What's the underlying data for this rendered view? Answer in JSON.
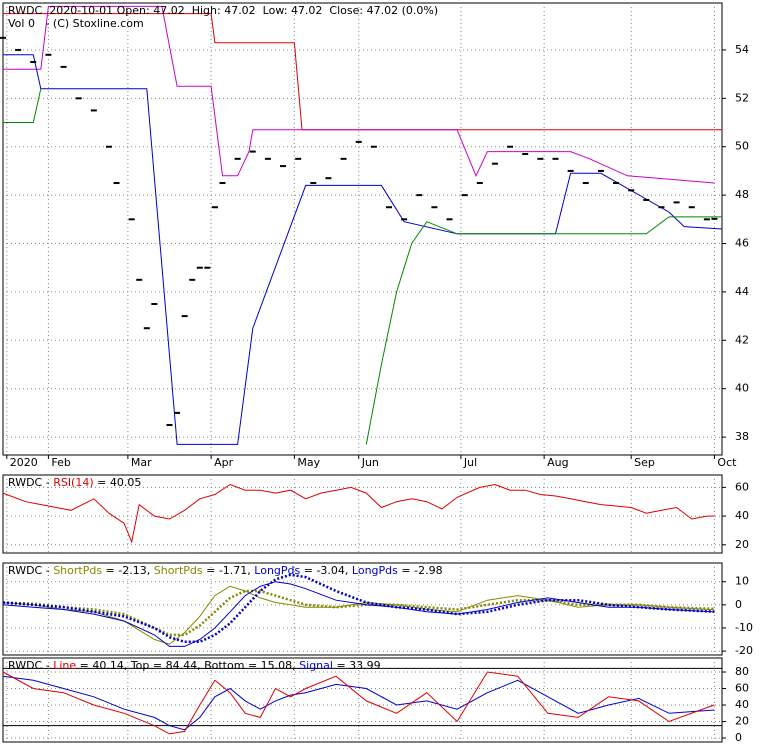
{
  "chart_data": [
    {
      "type": "price",
      "header": [
        [
          {
            "text": "RWDC  2020-10-01 Open: 47.02  High: 47.02  Low: 47.02  Close: 47.02 (0.0%)",
            "color": "#000000"
          }
        ],
        [
          {
            "text": "Vol 0   - (C) Stoxline.com",
            "color": "#000000"
          }
        ]
      ],
      "xlim": [
        0,
        190
      ],
      "xticks": [
        {
          "value": 1,
          "label": "2020"
        },
        {
          "value": 12,
          "label": "Feb"
        },
        {
          "value": 33,
          "label": "Mar"
        },
        {
          "value": 55,
          "label": "Apr"
        },
        {
          "value": 77,
          "label": "May"
        },
        {
          "value": 94,
          "label": "Jun"
        },
        {
          "value": 121,
          "label": "Jul"
        },
        {
          "value": 143,
          "label": "Aug"
        },
        {
          "value": 166,
          "label": "Sep"
        },
        {
          "value": 188,
          "label": "Oct"
        }
      ],
      "ylim": [
        37.26,
        55.94
      ],
      "yticks": [
        38,
        40,
        42,
        44,
        46,
        48,
        50,
        52,
        54
      ],
      "grid": true,
      "series": [
        {
          "style": "line",
          "color": "#dd0000",
          "x": [
            0,
            55,
            56,
            77,
            79,
            190
          ],
          "values": [
            55.5,
            55.5,
            54.3,
            54.3,
            50.7,
            50.7
          ]
        },
        {
          "style": "line",
          "color": "#cc00cc",
          "x": [
            0,
            10,
            12,
            42,
            46,
            55,
            58,
            62,
            65,
            66,
            120,
            125,
            128,
            150,
            155,
            165,
            188
          ],
          "values": [
            53.2,
            53.2,
            55.8,
            55.8,
            52.5,
            52.5,
            48.8,
            48.8,
            49.8,
            50.7,
            50.7,
            48.8,
            49.8,
            49.8,
            49.5,
            48.8,
            48.5
          ]
        },
        {
          "style": "line",
          "color": "#0000cc",
          "x": [
            0,
            8,
            10,
            38,
            46,
            62,
            66,
            80,
            100,
            106,
            120,
            146,
            150,
            158,
            176,
            180,
            190
          ],
          "values": [
            53.8,
            53.8,
            52.4,
            52.4,
            37.7,
            37.7,
            42.5,
            48.4,
            48.4,
            46.9,
            46.4,
            46.4,
            48.9,
            48.9,
            47.3,
            46.7,
            46.6
          ]
        },
        {
          "style": "line",
          "color": "#008800",
          "x": [
            0,
            8,
            10,
            46,
            96,
            100,
            104,
            108,
            112,
            120,
            170,
            176,
            190
          ],
          "values": [
            51.0,
            51.0,
            52.4,
            null,
            37.7,
            41,
            44,
            46,
            46.9,
            46.4,
            46.4,
            47.1,
            47.1
          ]
        },
        {
          "style": "dash",
          "color": "#000000",
          "x": [
            0,
            4,
            8,
            12,
            16,
            20,
            24,
            28,
            30,
            34,
            36,
            38,
            40,
            44,
            46,
            48,
            50,
            52,
            54,
            56,
            58,
            62,
            66,
            70,
            74,
            78,
            82,
            86,
            90,
            94,
            98,
            102,
            106,
            110,
            114,
            118,
            122,
            126,
            130,
            134,
            138,
            142,
            146,
            150,
            154,
            158,
            162,
            166,
            170,
            174,
            178,
            182,
            186,
            188
          ],
          "values": [
            54.5,
            54,
            53.5,
            53.8,
            53.3,
            52,
            51.5,
            50,
            48.5,
            47,
            44.5,
            42.5,
            43.5,
            38.5,
            39,
            43,
            44.5,
            45,
            45,
            47.5,
            48.5,
            49.5,
            49.8,
            49.5,
            49.2,
            49.5,
            48.5,
            48.7,
            49.5,
            50.2,
            50,
            47.5,
            47,
            48,
            47.5,
            47,
            48,
            48.5,
            49.3,
            50,
            49.7,
            49.5,
            49.5,
            49,
            48.5,
            49,
            48.5,
            48.2,
            47.8,
            47.5,
            47.7,
            47.5,
            47,
            47.02
          ]
        }
      ]
    },
    {
      "type": "line",
      "header": [
        [
          {
            "text": "RWDC - ",
            "color": "#000000"
          },
          {
            "text": "RSI(14)",
            "color": "#dd0000"
          },
          {
            "text": " = 40.05",
            "color": "#000000"
          }
        ]
      ],
      "xlim": [
        0,
        190
      ],
      "ylim": [
        14.3,
        68.6
      ],
      "yticks": [
        20,
        40,
        60
      ],
      "grid": true,
      "series": [
        {
          "style": "line",
          "color": "#dd0000",
          "x": [
            0,
            6,
            12,
            18,
            24,
            28,
            32,
            34,
            36,
            40,
            44,
            48,
            52,
            56,
            60,
            64,
            68,
            72,
            76,
            80,
            84,
            88,
            92,
            96,
            100,
            104,
            108,
            112,
            116,
            120,
            126,
            130,
            134,
            138,
            142,
            146,
            150,
            154,
            158,
            162,
            166,
            170,
            174,
            178,
            182,
            186,
            188
          ],
          "values": [
            56,
            50,
            47,
            44,
            52,
            42,
            35,
            22,
            48,
            40,
            38,
            44,
            52,
            55,
            62,
            58,
            58,
            56,
            58,
            52,
            56,
            58,
            60,
            56,
            46,
            50,
            52,
            50,
            45,
            53,
            60,
            62,
            58,
            58,
            55,
            54,
            52,
            50,
            48,
            47,
            46,
            42,
            44,
            46,
            38,
            40,
            40.05
          ]
        }
      ]
    },
    {
      "type": "line",
      "header": [
        [
          {
            "text": "RWDC - ",
            "color": "#000000"
          },
          {
            "text": "ShortPds",
            "color": "#888800"
          },
          {
            "text": " = -2.13, ",
            "color": "#000000"
          },
          {
            "text": "ShortPds",
            "color": "#888800"
          },
          {
            "text": " = -1.71, ",
            "color": "#000000"
          },
          {
            "text": "LongPds",
            "color": "#0000cc"
          },
          {
            "text": " = -3.04, ",
            "color": "#000000"
          },
          {
            "text": "LongPds",
            "color": "#0000cc"
          },
          {
            "text": " = -2.98",
            "color": "#000000"
          }
        ]
      ],
      "xlim": [
        0,
        190
      ],
      "ylim": [
        -21.7,
        18.1
      ],
      "yticks": [
        -20,
        -10,
        0,
        10
      ],
      "grid": true,
      "series": [
        {
          "style": "line",
          "color": "#888800",
          "x": [
            0,
            8,
            16,
            24,
            32,
            40,
            44,
            48,
            52,
            56,
            60,
            64,
            68,
            72,
            76,
            80,
            88,
            96,
            104,
            112,
            120,
            128,
            136,
            144,
            152,
            160,
            168,
            176,
            188
          ],
          "values": [
            1,
            0,
            -2,
            -3,
            -7,
            -15,
            -17,
            -12,
            -5,
            4,
            8,
            6,
            3,
            1,
            0,
            -1,
            -1,
            1,
            0,
            -2,
            -3,
            2,
            4,
            2,
            -1,
            0,
            0,
            -1,
            -2.13
          ]
        },
        {
          "style": "dots",
          "color": "#888800",
          "x": [
            0,
            8,
            16,
            24,
            32,
            40,
            44,
            48,
            52,
            56,
            60,
            64,
            68,
            72,
            76,
            80,
            88,
            96,
            104,
            112,
            120,
            128,
            136,
            144,
            152,
            160,
            168,
            176,
            188
          ],
          "values": [
            1,
            0.5,
            -1,
            -2,
            -4,
            -10,
            -13,
            -13,
            -9,
            -3,
            3,
            6,
            6,
            4,
            2,
            0,
            -1,
            0,
            0,
            -1,
            -2,
            0,
            2,
            2,
            0,
            0,
            0,
            -1,
            -1.71
          ]
        },
        {
          "style": "line",
          "color": "#0000cc",
          "x": [
            0,
            8,
            16,
            24,
            32,
            40,
            44,
            48,
            52,
            56,
            60,
            64,
            68,
            72,
            76,
            80,
            88,
            96,
            104,
            112,
            120,
            128,
            136,
            144,
            152,
            160,
            168,
            176,
            188
          ],
          "values": [
            0,
            -1,
            -2,
            -4,
            -7,
            -13,
            -18,
            -18,
            -15,
            -10,
            -3,
            4,
            8,
            10,
            9,
            7,
            2,
            0,
            -1,
            -3,
            -4,
            -2,
            1,
            3,
            1,
            -1,
            -1,
            -2,
            -3.04
          ]
        },
        {
          "style": "dots",
          "color": "#0000cc",
          "x": [
            0,
            8,
            16,
            24,
            32,
            40,
            44,
            48,
            52,
            56,
            60,
            64,
            68,
            72,
            76,
            80,
            88,
            96,
            104,
            112,
            120,
            128,
            136,
            144,
            152,
            160,
            168,
            176,
            188
          ],
          "values": [
            1,
            0,
            -1,
            -3,
            -5,
            -10,
            -14,
            -16,
            -16,
            -13,
            -8,
            -1,
            6,
            11,
            13,
            12,
            6,
            1,
            -1,
            -2,
            -4,
            -3,
            0,
            2,
            2,
            0,
            -1,
            -2,
            -2.98
          ]
        }
      ]
    },
    {
      "type": "line",
      "header": [
        [
          {
            "text": "RWDC - ",
            "color": "#000000"
          },
          {
            "text": "Line",
            "color": "#dd0000"
          },
          {
            "text": " = 40.14, ",
            "color": "#000000"
          },
          {
            "text": "Top",
            "color": "#000000"
          },
          {
            "text": " = 84.44, ",
            "color": "#000000"
          },
          {
            "text": "Bottom",
            "color": "#000000"
          },
          {
            "text": " = 15.08, ",
            "color": "#000000"
          },
          {
            "text": "Signal",
            "color": "#0000cc"
          },
          {
            "text": " = 33.99",
            "color": "#000000"
          }
        ]
      ],
      "xlim": [
        0,
        190
      ],
      "ylim": [
        -4.8,
        97
      ],
      "yticks": [
        0,
        20,
        40,
        60,
        80
      ],
      "grid": true,
      "series": [
        {
          "style": "hline",
          "color": "#000000",
          "values": [
            84.44
          ]
        },
        {
          "style": "hline",
          "color": "#000000",
          "values": [
            15.08
          ]
        },
        {
          "style": "line",
          "color": "#0000cc",
          "x": [
            0,
            8,
            16,
            24,
            32,
            40,
            44,
            48,
            52,
            56,
            60,
            64,
            68,
            72,
            76,
            80,
            88,
            96,
            104,
            112,
            120,
            128,
            136,
            144,
            152,
            160,
            168,
            176,
            188
          ],
          "values": [
            75,
            70,
            60,
            50,
            35,
            25,
            15,
            10,
            25,
            50,
            60,
            45,
            35,
            45,
            52,
            55,
            65,
            60,
            40,
            45,
            35,
            55,
            70,
            50,
            30,
            40,
            48,
            30,
            33.99
          ]
        },
        {
          "style": "line",
          "color": "#dd0000",
          "x": [
            0,
            8,
            16,
            24,
            32,
            40,
            44,
            48,
            52,
            56,
            60,
            64,
            68,
            72,
            76,
            80,
            88,
            96,
            104,
            112,
            120,
            128,
            136,
            144,
            152,
            160,
            168,
            176,
            188
          ],
          "values": [
            80,
            60,
            55,
            40,
            30,
            15,
            5,
            8,
            40,
            70,
            55,
            30,
            25,
            60,
            50,
            60,
            75,
            45,
            30,
            55,
            20,
            80,
            75,
            30,
            25,
            50,
            45,
            20,
            40.14
          ]
        }
      ]
    }
  ]
}
